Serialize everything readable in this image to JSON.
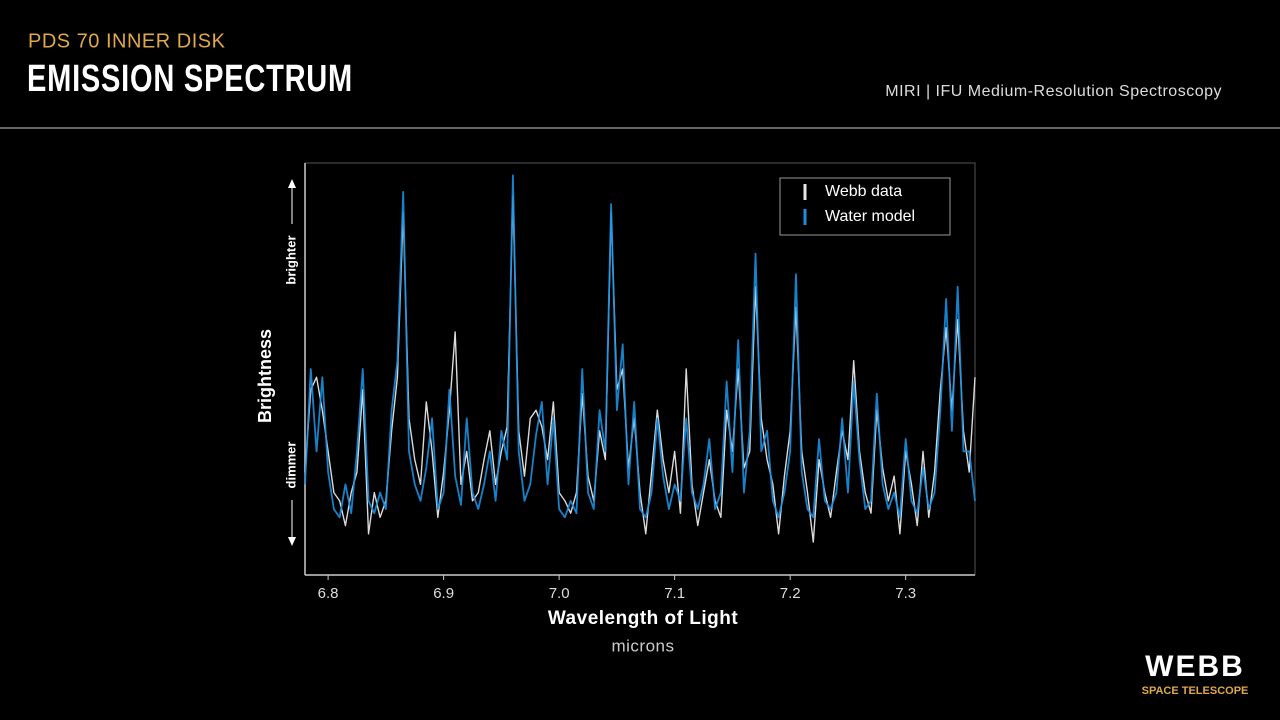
{
  "header": {
    "supertitle": "PDS 70 INNER DISK",
    "title": "EMISSION SPECTRUM",
    "subtitle": "MIRI | IFU Medium-Resolution Spectroscopy"
  },
  "logo": {
    "name": "WEBB",
    "tagline": "SPACE TELESCOPE"
  },
  "chart_data": {
    "type": "line",
    "xlabel": "Wavelength of Light",
    "xunit": "microns",
    "ylabel": "Brightness",
    "annotations": {
      "top": "brighter",
      "bottom": "dimmer"
    },
    "xlim": [
      6.78,
      7.36
    ],
    "ylim": [
      0,
      100
    ],
    "xticks": [
      6.8,
      6.9,
      {
        "value": 7,
        "label": "7.0"
      },
      7.1,
      7.2,
      7.3
    ],
    "legend": "upper right",
    "x": [
      6.78,
      6.785,
      6.79,
      6.795,
      6.8,
      6.805,
      6.81,
      6.815,
      6.82,
      6.825,
      6.83,
      6.835,
      6.84,
      6.845,
      6.85,
      6.855,
      6.86,
      6.865,
      6.87,
      6.875,
      6.88,
      6.885,
      6.89,
      6.895,
      6.9,
      6.905,
      6.91,
      6.915,
      6.92,
      6.925,
      6.93,
      6.935,
      6.94,
      6.945,
      6.95,
      6.955,
      6.96,
      6.965,
      6.97,
      6.975,
      6.98,
      6.985,
      6.99,
      6.995,
      7.0,
      7.005,
      7.01,
      7.015,
      7.02,
      7.025,
      7.03,
      7.035,
      7.04,
      7.045,
      7.05,
      7.055,
      7.06,
      7.065,
      7.07,
      7.075,
      7.08,
      7.085,
      7.09,
      7.095,
      7.1,
      7.105,
      7.11,
      7.115,
      7.12,
      7.125,
      7.13,
      7.135,
      7.14,
      7.145,
      7.15,
      7.155,
      7.16,
      7.165,
      7.17,
      7.175,
      7.18,
      7.185,
      7.19,
      7.195,
      7.2,
      7.205,
      7.21,
      7.215,
      7.22,
      7.225,
      7.23,
      7.235,
      7.24,
      7.245,
      7.25,
      7.255,
      7.26,
      7.265,
      7.27,
      7.275,
      7.28,
      7.285,
      7.29,
      7.295,
      7.3,
      7.305,
      7.31,
      7.315,
      7.32,
      7.325,
      7.33,
      7.335,
      7.34,
      7.345,
      7.35,
      7.355,
      7.36
    ],
    "series": [
      {
        "name": "Webb data",
        "color": "#e6e6e6",
        "values": [
          25,
          45,
          48,
          40,
          30,
          20,
          18,
          12,
          20,
          25,
          45,
          10,
          20,
          14,
          18,
          35,
          48,
          88,
          38,
          28,
          22,
          42,
          30,
          14,
          25,
          40,
          59,
          22,
          30,
          18,
          20,
          28,
          35,
          22,
          30,
          36,
          92,
          35,
          24,
          38,
          40,
          36,
          28,
          42,
          20,
          18,
          15,
          20,
          44,
          24,
          18,
          35,
          28,
          88,
          45,
          50,
          26,
          38,
          20,
          10,
          25,
          40,
          28,
          20,
          30,
          15,
          50,
          22,
          12,
          20,
          28,
          18,
          14,
          40,
          30,
          50,
          26,
          30,
          70,
          38,
          28,
          22,
          10,
          24,
          35,
          65,
          30,
          20,
          8,
          28,
          20,
          14,
          25,
          35,
          28,
          52,
          30,
          20,
          15,
          40,
          26,
          18,
          24,
          10,
          30,
          22,
          12,
          30,
          14,
          25,
          45,
          60,
          40,
          62,
          35,
          25,
          48
        ]
      },
      {
        "name": "Water model",
        "color": "#1a8fe0",
        "values": [
          22,
          50,
          30,
          48,
          25,
          16,
          14,
          22,
          15,
          30,
          50,
          18,
          15,
          20,
          16,
          40,
          52,
          93,
          30,
          22,
          18,
          26,
          38,
          16,
          20,
          45,
          24,
          17,
          38,
          20,
          16,
          22,
          30,
          18,
          35,
          28,
          97,
          30,
          18,
          22,
          34,
          42,
          22,
          38,
          16,
          14,
          18,
          15,
          50,
          20,
          16,
          40,
          30,
          90,
          40,
          56,
          22,
          42,
          16,
          14,
          20,
          38,
          24,
          16,
          22,
          18,
          38,
          20,
          16,
          22,
          33,
          16,
          20,
          47,
          25,
          57,
          20,
          35,
          78,
          30,
          35,
          18,
          14,
          20,
          30,
          73,
          25,
          16,
          14,
          33,
          18,
          16,
          20,
          38,
          20,
          47,
          28,
          16,
          18,
          44,
          22,
          16,
          20,
          14,
          33,
          18,
          15,
          26,
          16,
          20,
          40,
          67,
          35,
          70,
          30,
          30,
          18
        ]
      }
    ]
  }
}
